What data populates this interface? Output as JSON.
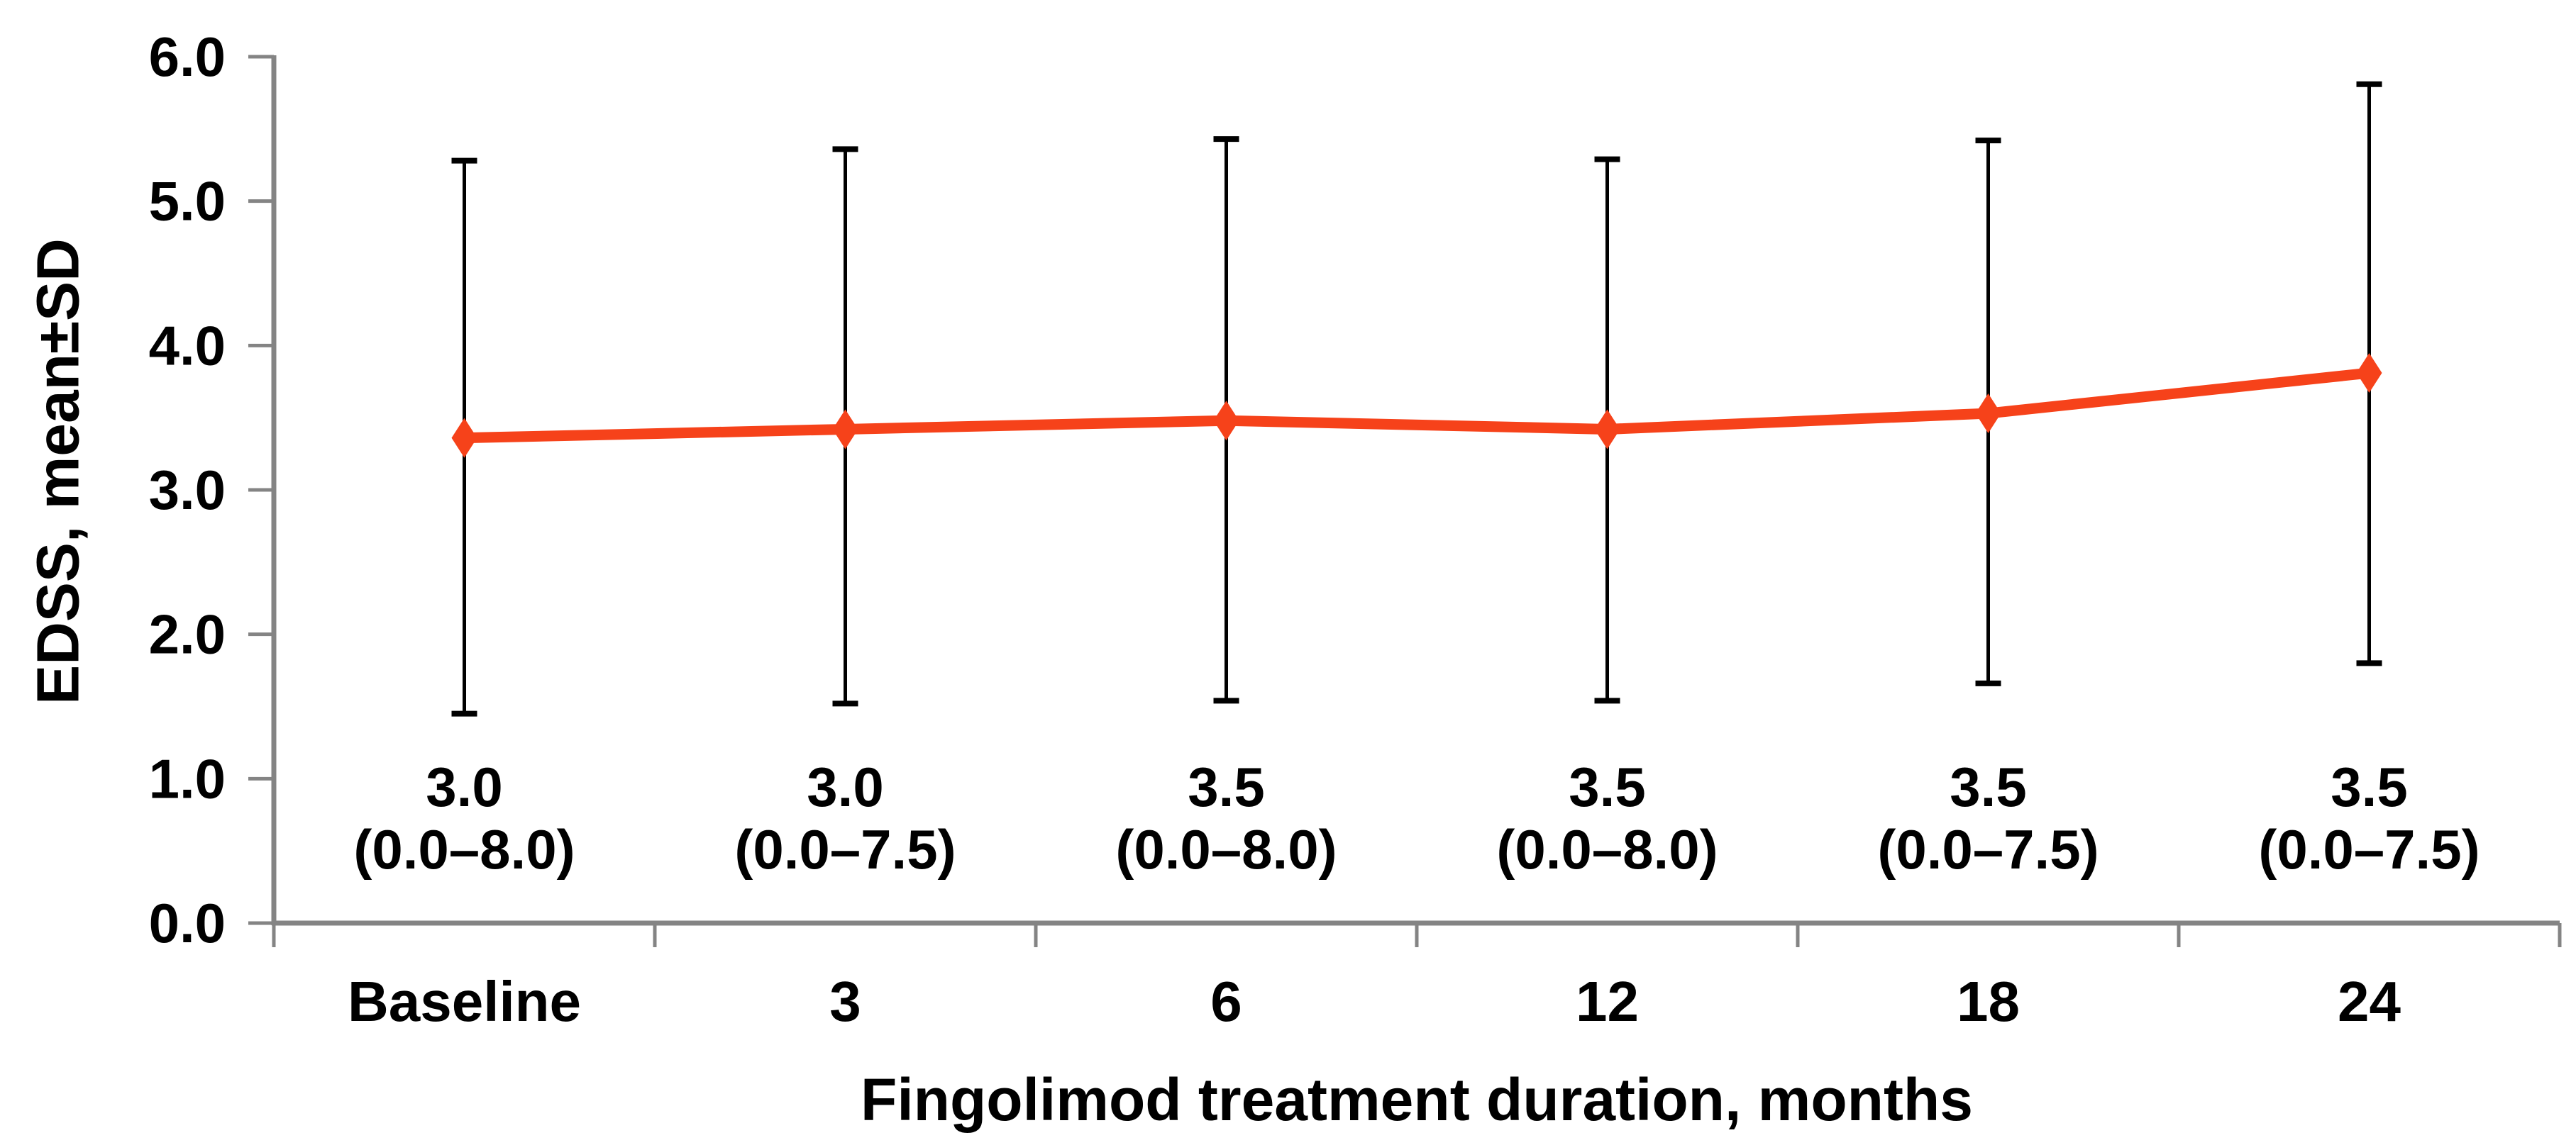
{
  "chart_data": {
    "type": "line",
    "title": "",
    "xlabel": "Fingolimod treatment duration, months",
    "ylabel": "EDSS, mean±SD",
    "categories": [
      "Baseline",
      "3",
      "6",
      "12",
      "18",
      "24"
    ],
    "series": [
      {
        "name": "EDSS mean",
        "means": [
          3.36,
          3.42,
          3.48,
          3.42,
          3.53,
          3.81
        ],
        "error_upper": [
          5.28,
          5.36,
          5.43,
          5.29,
          5.42,
          5.81
        ],
        "error_lower": [
          1.45,
          1.52,
          1.54,
          1.54,
          1.66,
          1.8
        ]
      }
    ],
    "point_labels": [
      {
        "median": "3.0",
        "range": "(0.0–8.0)"
      },
      {
        "median": "3.0",
        "range": "(0.0–7.5)"
      },
      {
        "median": "3.5",
        "range": "(0.0–8.0)"
      },
      {
        "median": "3.5",
        "range": "(0.0–8.0)"
      },
      {
        "median": "3.5",
        "range": "(0.0–7.5)"
      },
      {
        "median": "3.5",
        "range": "(0.0–7.5)"
      }
    ],
    "y_axis": {
      "min": 0,
      "max": 6,
      "tick_step": 1,
      "tick_labels_top_to_bottom": [
        "6.0",
        "5.0",
        "4.0",
        "3.0",
        "2.0",
        "1.0",
        "0.0"
      ]
    },
    "legend": "none",
    "grid": "off",
    "colors": {
      "line": "#F6421A",
      "marker": "#F6421A",
      "error_bar": "#000000",
      "axis": "#848484",
      "text": "#000000",
      "background": "#FFFFFF"
    }
  }
}
